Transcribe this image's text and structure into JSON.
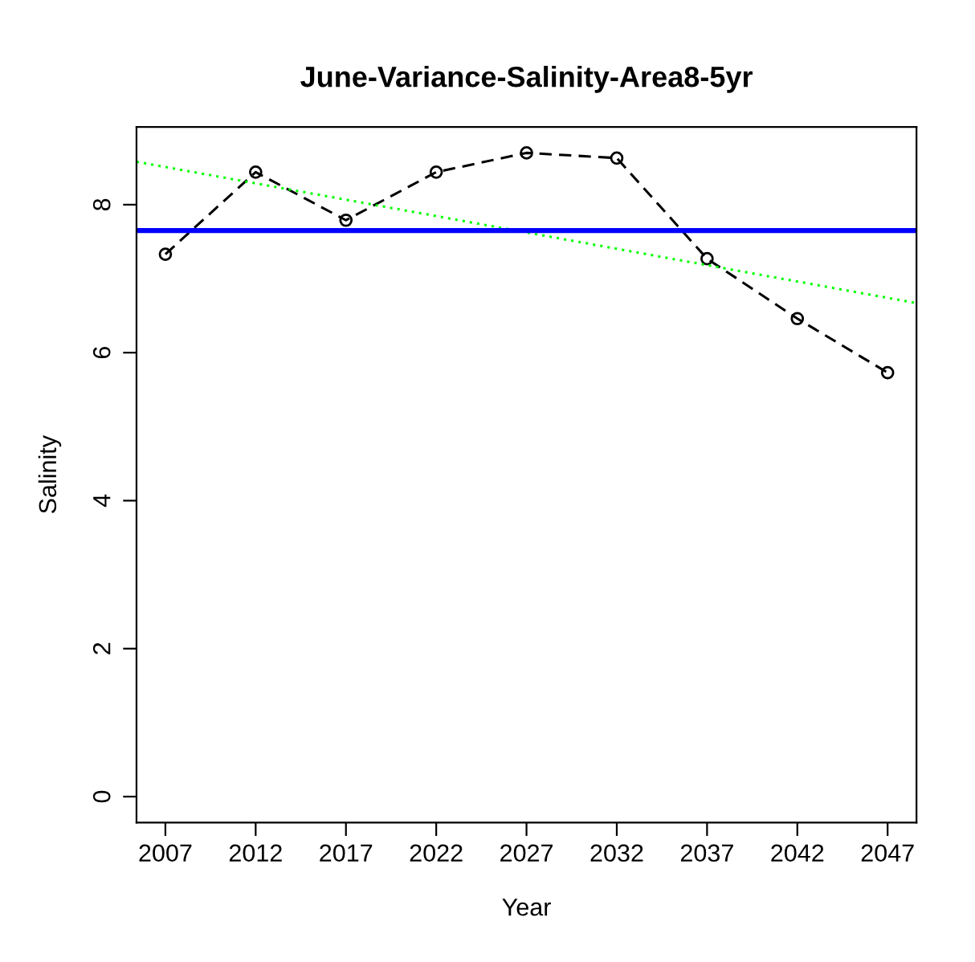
{
  "chart_data": {
    "type": "line",
    "title": "June-Variance-Salinity-Area8-5yr",
    "xlabel": "Year",
    "ylabel": "Salinity",
    "x": [
      2007,
      2012,
      2017,
      2022,
      2027,
      2032,
      2037,
      2042,
      2047
    ],
    "series": [
      {
        "color": "#000000",
        "values": [
          7.33,
          8.44,
          7.79,
          8.44,
          8.7,
          8.63,
          7.27,
          6.46,
          5.73
        ],
        "marker": "circle",
        "line_style": "dashed"
      },
      {
        "type": "line",
        "color": "#00ff00",
        "x": [
          2005.4,
          2048.6
        ],
        "values": [
          8.58,
          6.67
        ],
        "marker": "none",
        "line_style": "dotted"
      }
    ],
    "ref_lines": [
      {
        "axis": "y",
        "value": 7.65,
        "color": "#0000ff"
      }
    ],
    "xlim": [
      2005.4,
      2048.6
    ],
    "ylim": [
      -0.35,
      9.05
    ],
    "xticks": [
      2007,
      2012,
      2017,
      2022,
      2027,
      2032,
      2037,
      2042,
      2047
    ],
    "yticks": [
      0,
      2,
      4,
      6,
      8
    ],
    "grid": false,
    "legend": false
  }
}
